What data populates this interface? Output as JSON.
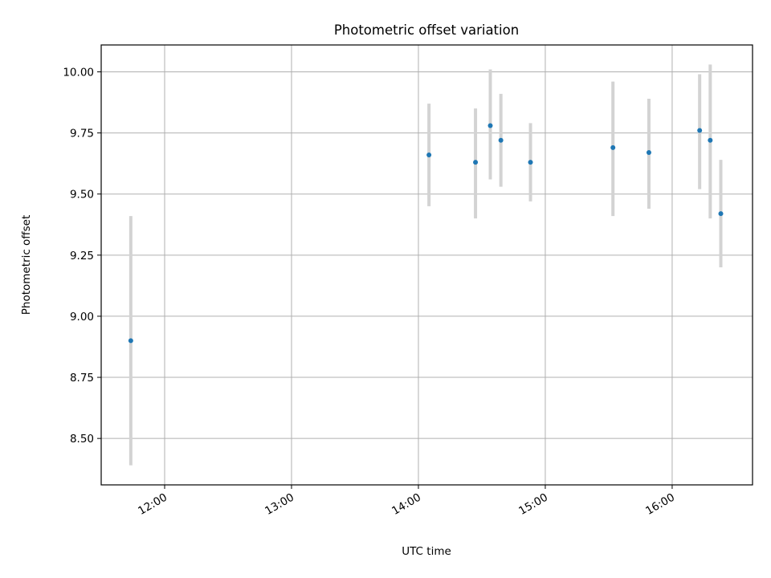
{
  "chart_data": {
    "type": "scatter",
    "title": "Photometric offset variation",
    "xlabel": "UTC time",
    "ylabel": "Photometric offset",
    "xlim": [
      "11:30",
      "16:38"
    ],
    "ylim": [
      8.31,
      10.11
    ],
    "grid": true,
    "x_ticks": [
      "12:00",
      "13:00",
      "14:00",
      "15:00",
      "16:00"
    ],
    "y_ticks": [
      8.5,
      8.75,
      9.0,
      9.25,
      9.5,
      9.75,
      10.0
    ],
    "y_tick_labels": [
      "8.50",
      "8.75",
      "9.00",
      "9.25",
      "9.50",
      "9.75",
      "10.00"
    ],
    "colors": {
      "marker": "#1f77b4",
      "error_bar": "#d3d3d3",
      "grid": "#b0b0b0"
    },
    "series": [
      {
        "x": [
          "11:44",
          "14:05",
          "14:27",
          "14:34",
          "14:39",
          "14:53",
          "15:32",
          "15:49",
          "16:13",
          "16:18",
          "16:23"
        ],
        "y": [
          8.9,
          9.66,
          9.63,
          9.78,
          9.72,
          9.63,
          9.69,
          9.67,
          9.76,
          9.72,
          9.42
        ],
        "yerr_low": [
          8.39,
          9.45,
          9.4,
          9.56,
          9.53,
          9.47,
          9.41,
          9.44,
          9.52,
          9.4,
          9.2
        ],
        "yerr_high": [
          9.41,
          9.87,
          9.85,
          10.01,
          9.91,
          9.79,
          9.96,
          9.89,
          9.99,
          10.03,
          9.64
        ]
      }
    ]
  }
}
